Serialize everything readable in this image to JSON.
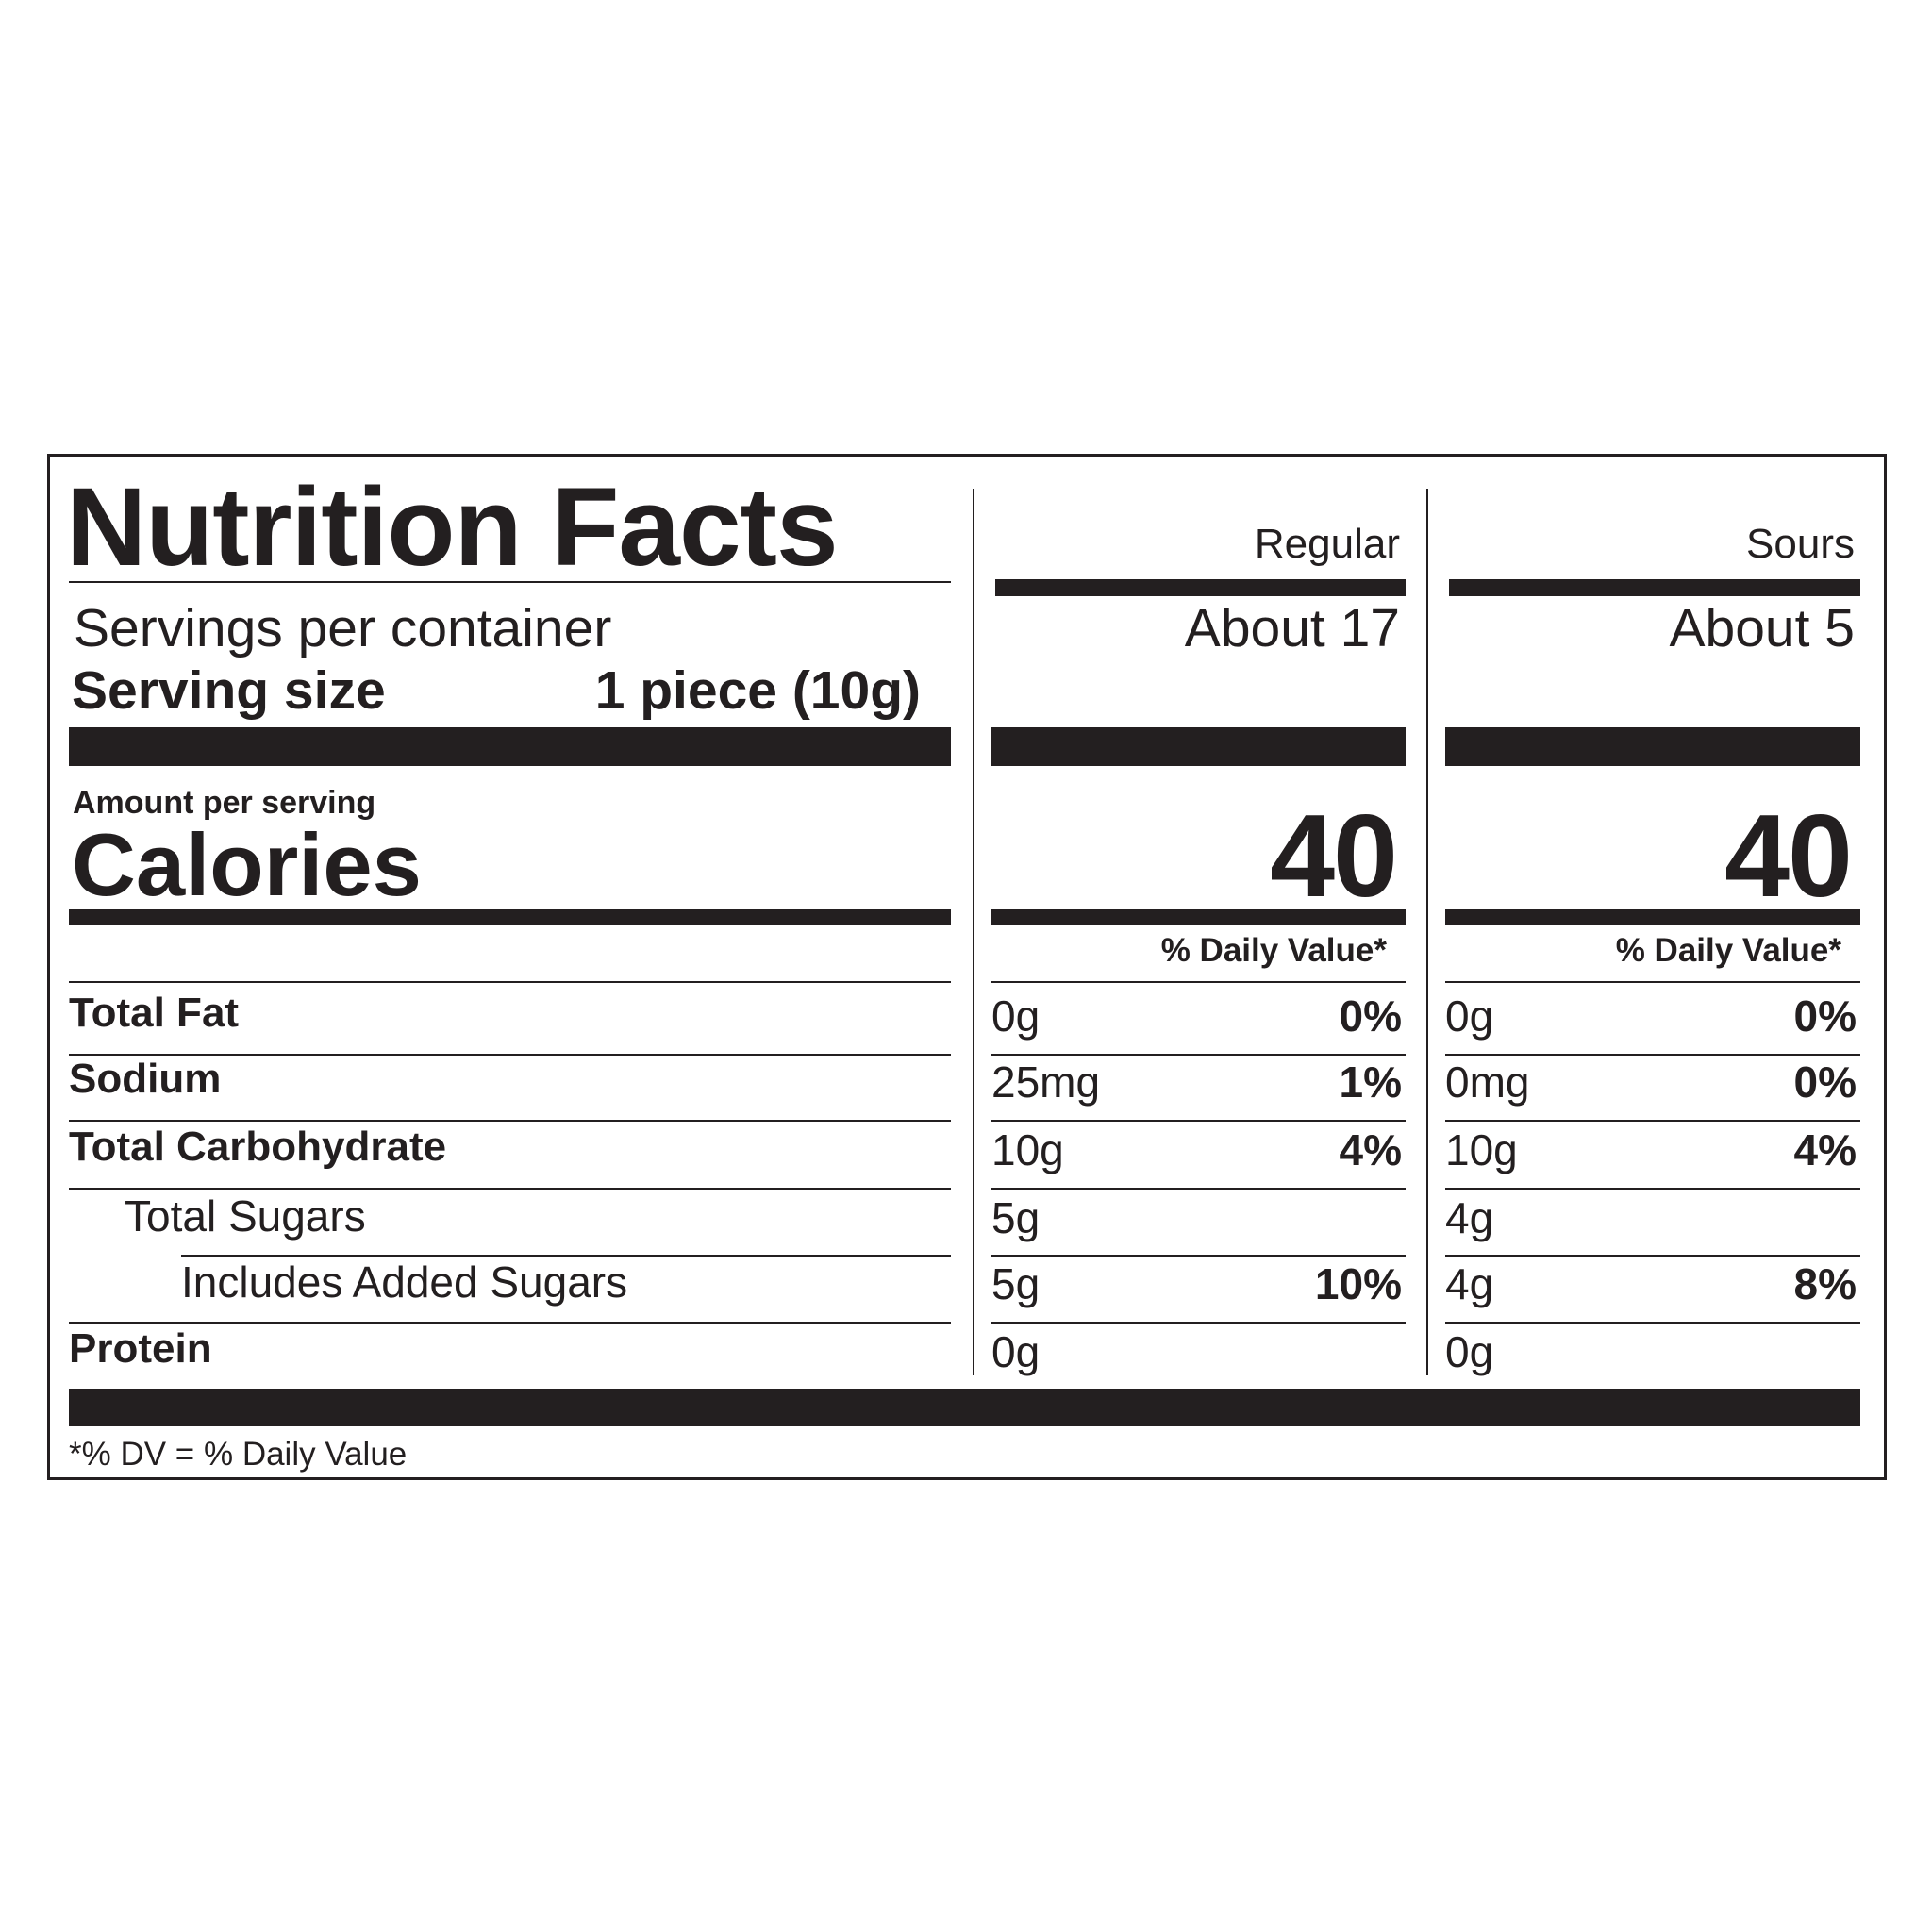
{
  "title": "Nutrition Facts",
  "servings_label": "Servings per container",
  "serving_size_label": "Serving size",
  "serving_size_value": "1 piece (10g)",
  "amount_per_serving": "Amount per serving",
  "calories_label": "Calories",
  "dv_header": "% Daily Value*",
  "columns": [
    {
      "name": "Regular",
      "servings": "About 17",
      "calories": "40"
    },
    {
      "name": "Sours",
      "servings": "About 5",
      "calories": "40"
    }
  ],
  "nutrients": [
    {
      "label": "Total Fat",
      "bold": true,
      "indent": 0,
      "values": [
        {
          "amount": "0g",
          "dv": "0%"
        },
        {
          "amount": "0g",
          "dv": "0%"
        }
      ]
    },
    {
      "label": "Sodium",
      "bold": true,
      "indent": 0,
      "values": [
        {
          "amount": "25mg",
          "dv": "1%"
        },
        {
          "amount": "0mg",
          "dv": "0%"
        }
      ]
    },
    {
      "label": "Total Carbohydrate",
      "bold": true,
      "indent": 0,
      "values": [
        {
          "amount": "10g",
          "dv": "4%"
        },
        {
          "amount": "10g",
          "dv": "4%"
        }
      ]
    },
    {
      "label": "Total Sugars",
      "bold": false,
      "indent": 1,
      "values": [
        {
          "amount": "5g",
          "dv": ""
        },
        {
          "amount": "4g",
          "dv": ""
        }
      ]
    },
    {
      "label": "Includes Added Sugars",
      "bold": false,
      "indent": 2,
      "values": [
        {
          "amount": "5g",
          "dv": "10%"
        },
        {
          "amount": "4g",
          "dv": "8%"
        }
      ]
    },
    {
      "label": "Protein",
      "bold": true,
      "indent": 0,
      "values": [
        {
          "amount": "0g",
          "dv": ""
        },
        {
          "amount": "0g",
          "dv": ""
        }
      ]
    }
  ],
  "footnote": "*% DV = % Daily Value"
}
